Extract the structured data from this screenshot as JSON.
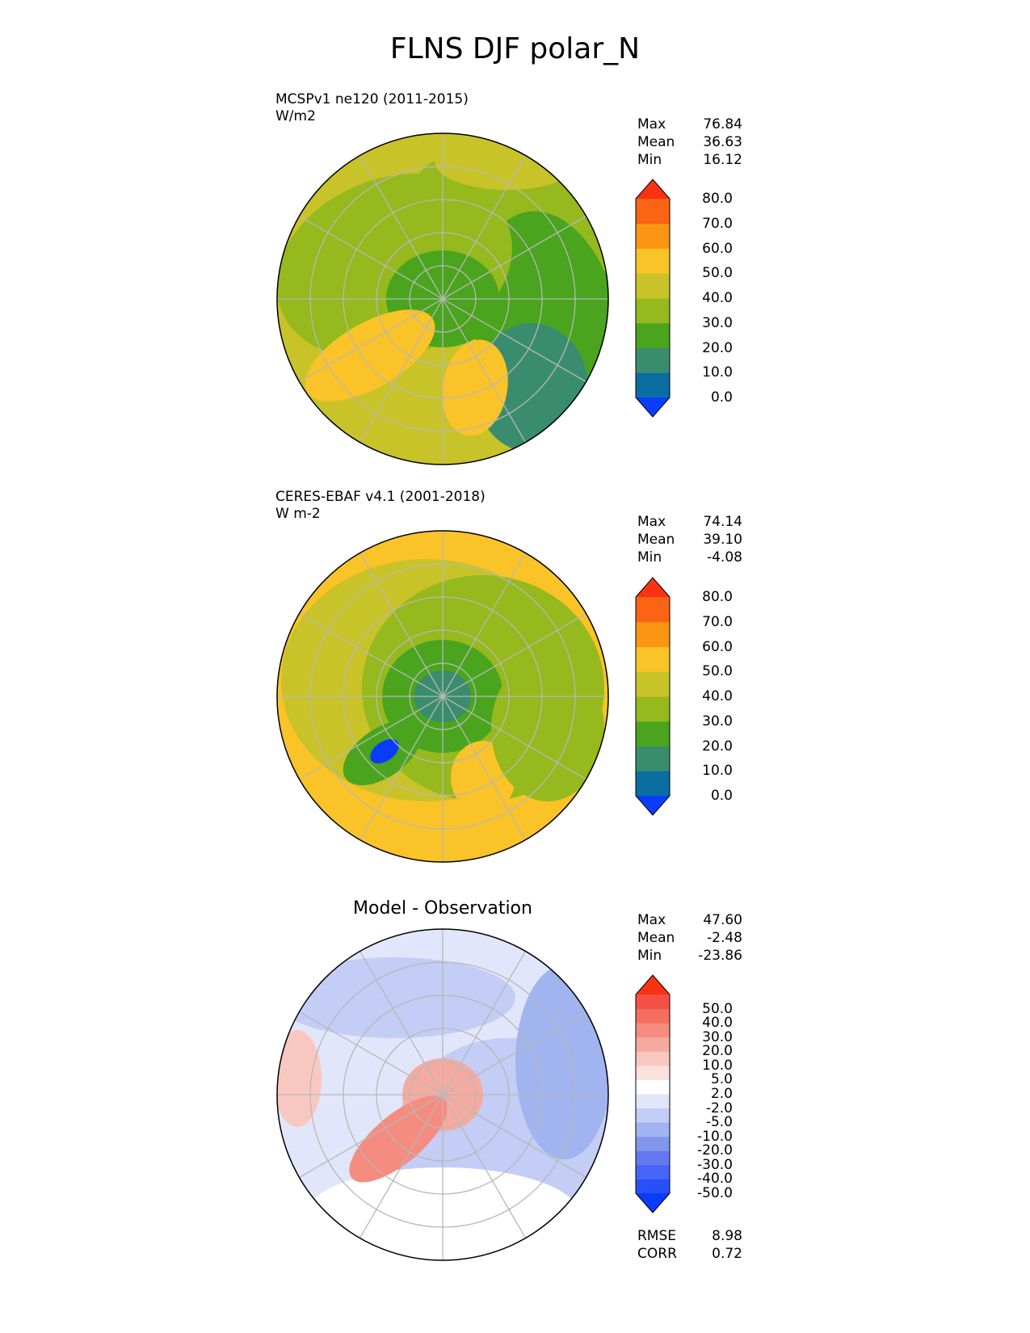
{
  "figure": {
    "title": "FLNS DJF polar_N"
  },
  "panels": [
    {
      "id": "model",
      "name_line": "MCSPv1 ne120 (2011-2015)",
      "units_line": "W/m2",
      "stats": [
        {
          "label": "Max",
          "value": "76.84"
        },
        {
          "label": "Mean",
          "value": "36.63"
        },
        {
          "label": "Min",
          "value": "16.12"
        }
      ],
      "colorbar": {
        "colors": [
          "#0a3cff",
          "#0a6ea0",
          "#3a8c6e",
          "#4aa41e",
          "#96b91e",
          "#c8c328",
          "#fac328",
          "#fa9614",
          "#fa6414",
          "#fa3214"
        ],
        "tick_labels": [
          "0.0",
          "10.0",
          "20.0",
          "30.0",
          "40.0",
          "50.0",
          "60.0",
          "70.0",
          "80.0"
        ]
      }
    },
    {
      "id": "obs",
      "name_line": "CERES-EBAF v4.1 (2001-2018)",
      "units_line": "W m-2",
      "stats": [
        {
          "label": "Max",
          "value": "74.14"
        },
        {
          "label": "Mean",
          "value": "39.10"
        },
        {
          "label": "Min",
          "value": "-4.08"
        }
      ],
      "colorbar": {
        "colors": [
          "#0a3cff",
          "#0a6ea0",
          "#3a8c6e",
          "#4aa41e",
          "#96b91e",
          "#c8c328",
          "#fac328",
          "#fa9614",
          "#fa6414",
          "#fa3214"
        ],
        "tick_labels": [
          "0.0",
          "10.0",
          "20.0",
          "30.0",
          "40.0",
          "50.0",
          "60.0",
          "70.0",
          "80.0"
        ]
      }
    },
    {
      "id": "diff",
      "title": "Model - Observation",
      "stats": [
        {
          "label": "Max",
          "value": "47.60"
        },
        {
          "label": "Mean",
          "value": "-2.48"
        },
        {
          "label": "Min",
          "value": "-23.86"
        }
      ],
      "colorbar": {
        "colors": [
          "#0a3cff",
          "#2850fa",
          "#4664f5",
          "#6478f0",
          "#8296eb",
          "#a0b4f0",
          "#c3cdf5",
          "#e1e6fa",
          "#ffffff",
          "#fae1dc",
          "#f8c8c0",
          "#f5aaa0",
          "#f58c80",
          "#f56e5f",
          "#f55046",
          "#fa3214"
        ],
        "tick_labels": [
          "-50.0",
          "-40.0",
          "-30.0",
          "-20.0",
          "-10.0",
          "-5.0",
          "-2.0",
          "2.0",
          "5.0",
          "10.0",
          "20.0",
          "30.0",
          "40.0",
          "50.0"
        ]
      },
      "metrics": [
        {
          "label": "RMSE",
          "value": "8.98"
        },
        {
          "label": "CORR",
          "value": "0.72"
        }
      ]
    }
  ]
}
